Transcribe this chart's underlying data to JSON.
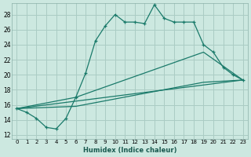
{
  "xlabel": "Humidex (Indice chaleur)",
  "background_color": "#cce8e0",
  "grid_color": "#aaccC4",
  "line_color": "#1a7a6a",
  "xlim": [
    -0.5,
    23.5
  ],
  "ylim": [
    11.5,
    29.5
  ],
  "xticks": [
    0,
    1,
    2,
    3,
    4,
    5,
    6,
    7,
    8,
    9,
    10,
    11,
    12,
    13,
    14,
    15,
    16,
    17,
    18,
    19,
    20,
    21,
    22,
    23
  ],
  "yticks": [
    12,
    14,
    16,
    18,
    20,
    22,
    24,
    26,
    28
  ],
  "line1_x": [
    0,
    1,
    2,
    3,
    4,
    5,
    6,
    7,
    8,
    9,
    10,
    11,
    12,
    13,
    14,
    15,
    16,
    17,
    18,
    19,
    20,
    21,
    22,
    23
  ],
  "line1_y": [
    15.5,
    15.0,
    14.2,
    13.0,
    12.8,
    14.2,
    17.0,
    20.2,
    24.5,
    26.5,
    28.0,
    27.0,
    27.0,
    26.8,
    29.3,
    27.5,
    27.0,
    27.0,
    27.0,
    24.0,
    23.0,
    21.0,
    20.0,
    19.3
  ],
  "line2_x": [
    0,
    6,
    19,
    23
  ],
  "line2_y": [
    15.5,
    17.0,
    23.0,
    19.3
  ],
  "line3_x": [
    0,
    6,
    19,
    23
  ],
  "line3_y": [
    15.5,
    15.8,
    19.0,
    19.3
  ],
  "line4_x": [
    0,
    23
  ],
  "line4_y": [
    15.5,
    19.3
  ]
}
